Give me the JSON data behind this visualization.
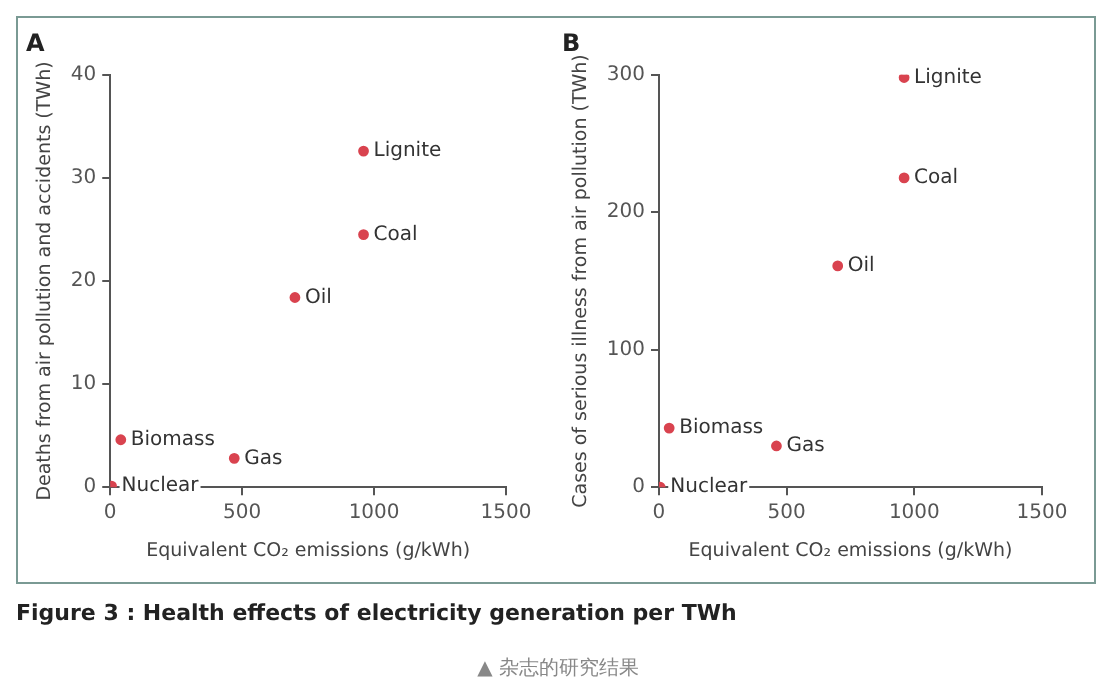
{
  "chart_data": [
    {
      "type": "scatter",
      "title": "A",
      "xlabel": "Equivalent CO₂ emissions (g/kWh)",
      "ylabel": "Deaths from air pollution and accidents (TWh)",
      "marker": "circle",
      "grid": false,
      "series": [
        {
          "color": "#d9434f",
          "x": [
            5,
            40,
            470,
            700,
            960,
            960
          ],
          "values": [
            0.1,
            4.6,
            2.8,
            18.4,
            24.5,
            32.6
          ]
        }
      ],
      "xlim": [
        0,
        1500
      ],
      "xticks": [
        0,
        500,
        1000,
        1500
      ],
      "ylim": [
        0,
        40
      ],
      "yticks": [
        0,
        10,
        20,
        30,
        40
      ],
      "annotations": [
        {
          "text": "Nuclear",
          "x": 5,
          "y": 0.1
        },
        {
          "text": "Biomass",
          "x": 40,
          "y": 4.6
        },
        {
          "text": "Gas",
          "x": 470,
          "y": 2.8
        },
        {
          "text": "Oil",
          "x": 700,
          "y": 18.4
        },
        {
          "text": "Coal",
          "x": 960,
          "y": 24.5
        },
        {
          "text": "Lignite",
          "x": 960,
          "y": 32.6
        },
        "Figure 3 : Health effects of electricity generation per TWh",
        "▲ 杂志的研究结果"
      ]
    },
    {
      "type": "scatter",
      "title": "B",
      "xlabel": "Equivalent CO₂ emissions (g/kWh)",
      "ylabel": "Cases of serious illness from air pollution (TWh)",
      "marker": "circle",
      "grid": false,
      "series": [
        {
          "color": "#d9434f",
          "x": [
            5,
            40,
            460,
            700,
            960,
            960
          ],
          "values": [
            0,
            43,
            30,
            161,
            225,
            298
          ]
        }
      ],
      "xlim": [
        0,
        1500
      ],
      "xticks": [
        0,
        500,
        1000,
        1500
      ],
      "ylim": [
        0,
        300
      ],
      "yticks": [
        0,
        100,
        200,
        300
      ],
      "annotations": [
        {
          "text": "Nuclear",
          "x": 5,
          "y": 0
        },
        {
          "text": "Biomass",
          "x": 40,
          "y": 43
        },
        {
          "text": "Gas",
          "x": 460,
          "y": 30
        },
        {
          "text": "Oil",
          "x": 700,
          "y": 161
        },
        {
          "text": "Coal",
          "x": 960,
          "y": 225
        },
        {
          "text": "Lignite",
          "x": 960,
          "y": 298
        }
      ]
    }
  ]
}
